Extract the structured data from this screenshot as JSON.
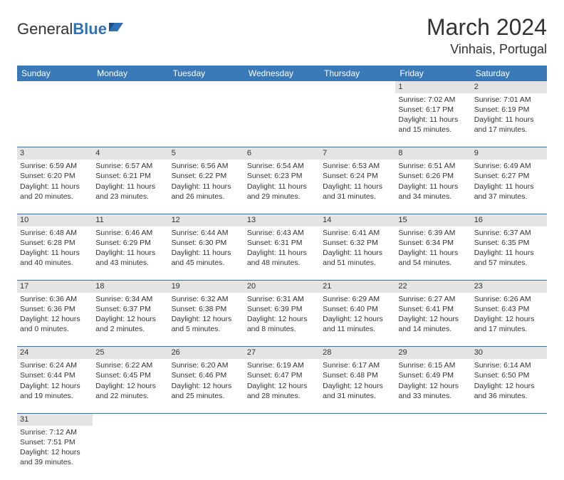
{
  "logo": {
    "word1": "General",
    "word2": "Blue"
  },
  "title": "March 2024",
  "location": "Vinhais, Portugal",
  "colors": {
    "header_bg": "#3a79b7",
    "accent": "#2f71b8",
    "daynum_bg": "#e4e4e4",
    "text": "#333333",
    "white": "#ffffff"
  },
  "weekdays": [
    "Sunday",
    "Monday",
    "Tuesday",
    "Wednesday",
    "Thursday",
    "Friday",
    "Saturday"
  ],
  "weeks": [
    [
      null,
      null,
      null,
      null,
      null,
      {
        "n": "1",
        "sr": "Sunrise: 7:02 AM",
        "ss": "Sunset: 6:17 PM",
        "d1": "Daylight: 11 hours",
        "d2": "and 15 minutes."
      },
      {
        "n": "2",
        "sr": "Sunrise: 7:01 AM",
        "ss": "Sunset: 6:19 PM",
        "d1": "Daylight: 11 hours",
        "d2": "and 17 minutes."
      }
    ],
    [
      {
        "n": "3",
        "sr": "Sunrise: 6:59 AM",
        "ss": "Sunset: 6:20 PM",
        "d1": "Daylight: 11 hours",
        "d2": "and 20 minutes."
      },
      {
        "n": "4",
        "sr": "Sunrise: 6:57 AM",
        "ss": "Sunset: 6:21 PM",
        "d1": "Daylight: 11 hours",
        "d2": "and 23 minutes."
      },
      {
        "n": "5",
        "sr": "Sunrise: 6:56 AM",
        "ss": "Sunset: 6:22 PM",
        "d1": "Daylight: 11 hours",
        "d2": "and 26 minutes."
      },
      {
        "n": "6",
        "sr": "Sunrise: 6:54 AM",
        "ss": "Sunset: 6:23 PM",
        "d1": "Daylight: 11 hours",
        "d2": "and 29 minutes."
      },
      {
        "n": "7",
        "sr": "Sunrise: 6:53 AM",
        "ss": "Sunset: 6:24 PM",
        "d1": "Daylight: 11 hours",
        "d2": "and 31 minutes."
      },
      {
        "n": "8",
        "sr": "Sunrise: 6:51 AM",
        "ss": "Sunset: 6:26 PM",
        "d1": "Daylight: 11 hours",
        "d2": "and 34 minutes."
      },
      {
        "n": "9",
        "sr": "Sunrise: 6:49 AM",
        "ss": "Sunset: 6:27 PM",
        "d1": "Daylight: 11 hours",
        "d2": "and 37 minutes."
      }
    ],
    [
      {
        "n": "10",
        "sr": "Sunrise: 6:48 AM",
        "ss": "Sunset: 6:28 PM",
        "d1": "Daylight: 11 hours",
        "d2": "and 40 minutes."
      },
      {
        "n": "11",
        "sr": "Sunrise: 6:46 AM",
        "ss": "Sunset: 6:29 PM",
        "d1": "Daylight: 11 hours",
        "d2": "and 43 minutes."
      },
      {
        "n": "12",
        "sr": "Sunrise: 6:44 AM",
        "ss": "Sunset: 6:30 PM",
        "d1": "Daylight: 11 hours",
        "d2": "and 45 minutes."
      },
      {
        "n": "13",
        "sr": "Sunrise: 6:43 AM",
        "ss": "Sunset: 6:31 PM",
        "d1": "Daylight: 11 hours",
        "d2": "and 48 minutes."
      },
      {
        "n": "14",
        "sr": "Sunrise: 6:41 AM",
        "ss": "Sunset: 6:32 PM",
        "d1": "Daylight: 11 hours",
        "d2": "and 51 minutes."
      },
      {
        "n": "15",
        "sr": "Sunrise: 6:39 AM",
        "ss": "Sunset: 6:34 PM",
        "d1": "Daylight: 11 hours",
        "d2": "and 54 minutes."
      },
      {
        "n": "16",
        "sr": "Sunrise: 6:37 AM",
        "ss": "Sunset: 6:35 PM",
        "d1": "Daylight: 11 hours",
        "d2": "and 57 minutes."
      }
    ],
    [
      {
        "n": "17",
        "sr": "Sunrise: 6:36 AM",
        "ss": "Sunset: 6:36 PM",
        "d1": "Daylight: 12 hours",
        "d2": "and 0 minutes."
      },
      {
        "n": "18",
        "sr": "Sunrise: 6:34 AM",
        "ss": "Sunset: 6:37 PM",
        "d1": "Daylight: 12 hours",
        "d2": "and 2 minutes."
      },
      {
        "n": "19",
        "sr": "Sunrise: 6:32 AM",
        "ss": "Sunset: 6:38 PM",
        "d1": "Daylight: 12 hours",
        "d2": "and 5 minutes."
      },
      {
        "n": "20",
        "sr": "Sunrise: 6:31 AM",
        "ss": "Sunset: 6:39 PM",
        "d1": "Daylight: 12 hours",
        "d2": "and 8 minutes."
      },
      {
        "n": "21",
        "sr": "Sunrise: 6:29 AM",
        "ss": "Sunset: 6:40 PM",
        "d1": "Daylight: 12 hours",
        "d2": "and 11 minutes."
      },
      {
        "n": "22",
        "sr": "Sunrise: 6:27 AM",
        "ss": "Sunset: 6:41 PM",
        "d1": "Daylight: 12 hours",
        "d2": "and 14 minutes."
      },
      {
        "n": "23",
        "sr": "Sunrise: 6:26 AM",
        "ss": "Sunset: 6:43 PM",
        "d1": "Daylight: 12 hours",
        "d2": "and 17 minutes."
      }
    ],
    [
      {
        "n": "24",
        "sr": "Sunrise: 6:24 AM",
        "ss": "Sunset: 6:44 PM",
        "d1": "Daylight: 12 hours",
        "d2": "and 19 minutes."
      },
      {
        "n": "25",
        "sr": "Sunrise: 6:22 AM",
        "ss": "Sunset: 6:45 PM",
        "d1": "Daylight: 12 hours",
        "d2": "and 22 minutes."
      },
      {
        "n": "26",
        "sr": "Sunrise: 6:20 AM",
        "ss": "Sunset: 6:46 PM",
        "d1": "Daylight: 12 hours",
        "d2": "and 25 minutes."
      },
      {
        "n": "27",
        "sr": "Sunrise: 6:19 AM",
        "ss": "Sunset: 6:47 PM",
        "d1": "Daylight: 12 hours",
        "d2": "and 28 minutes."
      },
      {
        "n": "28",
        "sr": "Sunrise: 6:17 AM",
        "ss": "Sunset: 6:48 PM",
        "d1": "Daylight: 12 hours",
        "d2": "and 31 minutes."
      },
      {
        "n": "29",
        "sr": "Sunrise: 6:15 AM",
        "ss": "Sunset: 6:49 PM",
        "d1": "Daylight: 12 hours",
        "d2": "and 33 minutes."
      },
      {
        "n": "30",
        "sr": "Sunrise: 6:14 AM",
        "ss": "Sunset: 6:50 PM",
        "d1": "Daylight: 12 hours",
        "d2": "and 36 minutes."
      }
    ],
    [
      {
        "n": "31",
        "sr": "Sunrise: 7:12 AM",
        "ss": "Sunset: 7:51 PM",
        "d1": "Daylight: 12 hours",
        "d2": "and 39 minutes."
      },
      null,
      null,
      null,
      null,
      null,
      null
    ]
  ]
}
